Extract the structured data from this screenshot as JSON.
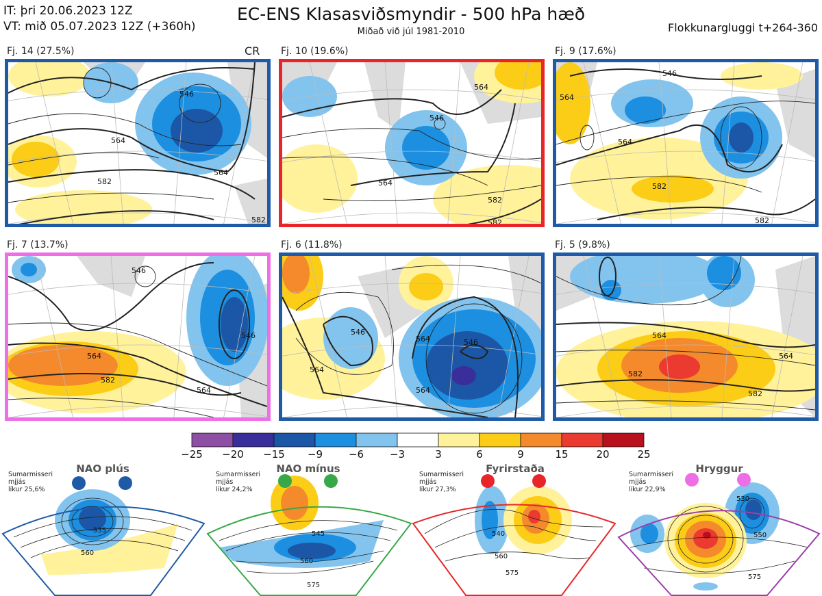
{
  "header": {
    "it_line": "IT: þri 20.06.2023 12Z",
    "vt_line": "VT: mið 05.07.2023 12Z  (+360h)",
    "title": "EC-ENS Klasasviðsmyndir - 500 hPa hæð",
    "subtitle": "Miðað við júl 1981-2010",
    "window": "Flokkunargluggi t+264-360"
  },
  "panels": [
    {
      "label": "Fj. 14 (27.5%)",
      "tag": "CR",
      "border": "#1f5aa6",
      "contours": [
        "546",
        "564",
        "564",
        "582",
        "582"
      ]
    },
    {
      "label": "Fj. 10 (19.6%)",
      "tag": "",
      "border": "#e8262a",
      "contours": [
        "546",
        "564",
        "564",
        "582",
        "582"
      ]
    },
    {
      "label": "Fj. 9 (17.6%)",
      "tag": "",
      "border": "#1f5aa6",
      "contours": [
        "546",
        "564",
        "564",
        "582",
        "582"
      ]
    },
    {
      "label": "Fj. 7 (13.7%)",
      "tag": "",
      "border": "#ee6ee6",
      "contours": [
        "546",
        "564",
        "564",
        "582",
        "546"
      ]
    },
    {
      "label": "Fj. 6 (11.8%)",
      "tag": "",
      "border": "#1f5aa6",
      "contours": [
        "546",
        "546",
        "564",
        "564",
        "564"
      ]
    },
    {
      "label": "Fj. 5 (9.8%)",
      "tag": "",
      "border": "#1f5aa6",
      "contours": [
        "564",
        "564",
        "582",
        "582"
      ]
    }
  ],
  "colorbar": {
    "ticks": [
      "−25",
      "−20",
      "−15",
      "−9",
      "−6",
      "−3",
      "3",
      "6",
      "9",
      "15",
      "20",
      "25"
    ],
    "colors": [
      "#8c4fa3",
      "#3a2f9a",
      "#1b57a6",
      "#1d8fe0",
      "#82c4ee",
      "#ffffff",
      "#fff29a",
      "#fccd17",
      "#f48a2c",
      "#eb3a2f",
      "#b8101c"
    ]
  },
  "regimes": [
    {
      "name": "NAO plús",
      "season": "Sumarmisseri",
      "type": "mjjás",
      "prob": "líkur 25,6%",
      "color": "#1f5aa6",
      "contours": [
        "535",
        "560"
      ]
    },
    {
      "name": "NAO mínus",
      "season": "Sumarmisseri",
      "type": "mjjás",
      "prob": "líkur 24,2%",
      "color": "#36a848",
      "contours": [
        "545",
        "560",
        "575"
      ]
    },
    {
      "name": "Fyrirstaða",
      "season": "Sumarmisseri",
      "type": "mjjás",
      "prob": "líkur 27,3%",
      "color": "#e8262a",
      "contours": [
        "540",
        "560",
        "575"
      ]
    },
    {
      "name": "Hryggur",
      "season": "Sumarmisseri",
      "type": "mjjás",
      "prob": "líkur 22,9%",
      "color": "#ee6ee6",
      "contours": [
        "530",
        "550",
        "575"
      ]
    }
  ]
}
